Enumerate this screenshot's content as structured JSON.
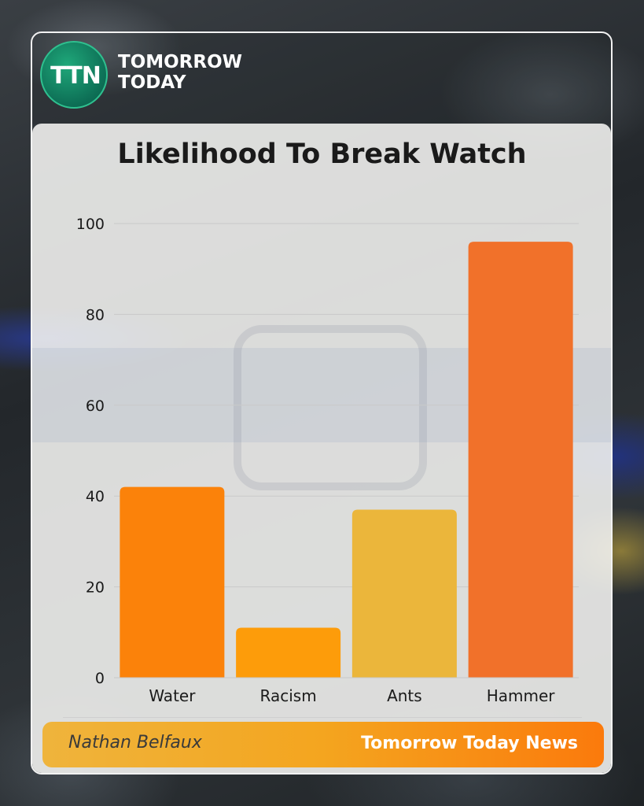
{
  "brand": {
    "logo_text": "TTN",
    "line1": "TOMORROW",
    "line2": "TODAY"
  },
  "footer": {
    "author": "Nathan Belfaux",
    "publisher": "Tomorrow Today News"
  },
  "colors": {
    "Water": "#fb820a",
    "Racism": "#fd9c0a",
    "Ants": "#ebb63b",
    "Hammer": "#f1712a",
    "grid": "#c9c9c9",
    "text": "#1a1a1a"
  },
  "chart_data": {
    "type": "bar",
    "title": "Likelihood To Break Watch",
    "categories": [
      "Water",
      "Racism",
      "Ants",
      "Hammer"
    ],
    "values": [
      42,
      11,
      37,
      96
    ],
    "ylim": [
      0,
      100
    ],
    "yticks": [
      0,
      20,
      40,
      60,
      80,
      100
    ],
    "xlabel": "",
    "ylabel": "",
    "grid": true,
    "legend": "none"
  }
}
